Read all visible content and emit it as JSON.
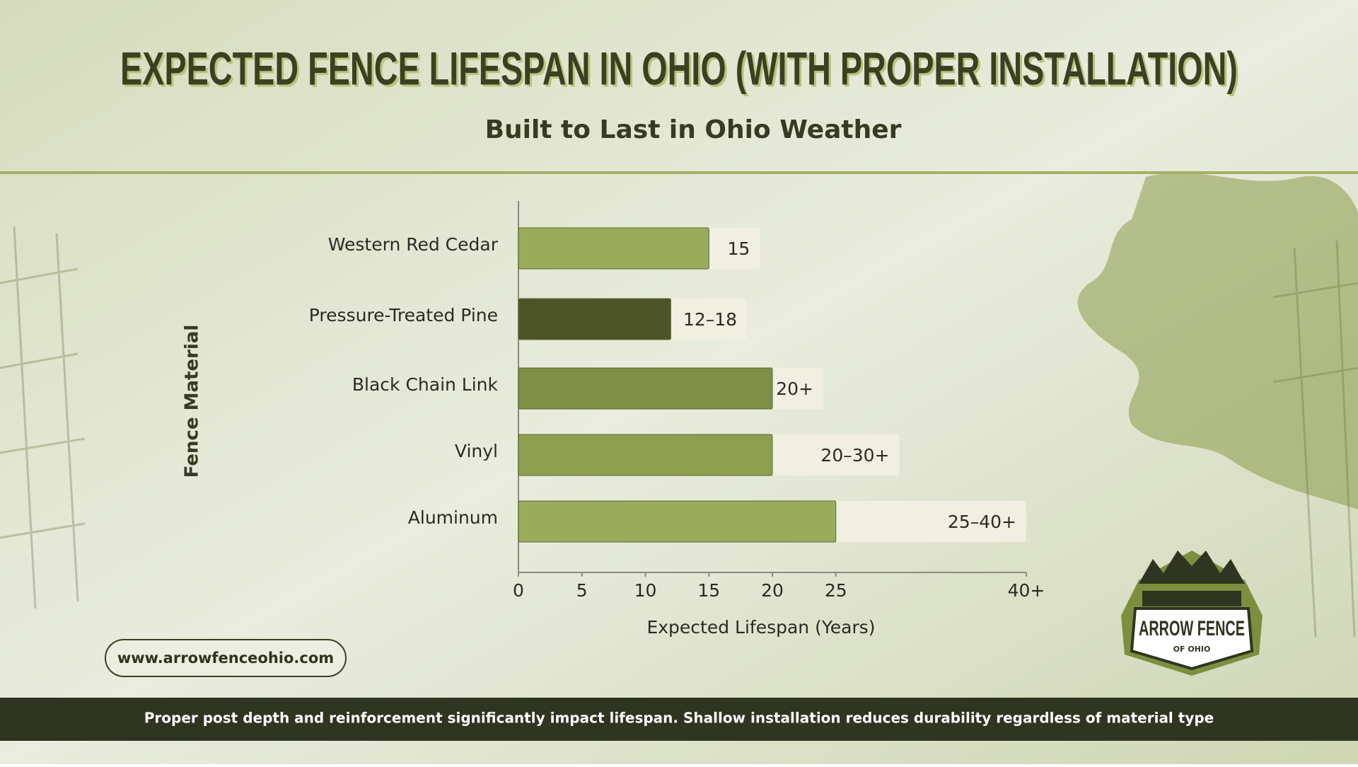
{
  "chart_data": {
    "type": "bar",
    "orientation": "horizontal",
    "title": "EXPECTED FENCE LIFESPAN IN OHIO (WITH PROPER INSTALLATION)",
    "subtitle": "Built to Last in Ohio Weather",
    "x_label": "Expected Lifespan (Years)",
    "y_label": "Fence Material",
    "categories": [
      "Western Red Cedar",
      "Pressure-Treated Pine",
      "Black Chain Link",
      "Vinyl",
      "Aluminum"
    ],
    "values": [
      15,
      12,
      20,
      20,
      25
    ],
    "values_max": [
      null,
      18,
      null,
      30,
      40
    ],
    "value_labels": [
      "15",
      "12–18",
      "20+",
      "20–30+",
      "25–40+"
    ],
    "colors": [
      "#9aab5c",
      "#4d5427",
      "#7f8f45",
      "#8d9e4f",
      "#9aab5c"
    ],
    "range_color": "#f1efe2",
    "xlim": [
      0,
      40
    ],
    "xticks": [
      0,
      5,
      10,
      15,
      20,
      25,
      {
        "value": 40,
        "label": "40+"
      }
    ],
    "grid": false
  },
  "website": "www.arrowfenceohio.com",
  "footnote": "Proper post depth and reinforcement significantly impact lifespan. Shallow installation reduces durability regardless of material type",
  "logo": {
    "name": "ARROW FENCE",
    "tagline": "OF OHIO"
  }
}
